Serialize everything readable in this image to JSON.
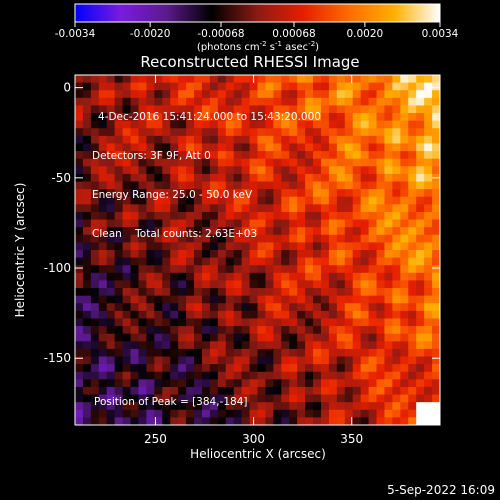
{
  "chart_data": {
    "type": "heatmap",
    "title": "Reconstructed RHESSI Image",
    "xlabel": "Heliocentric X (arcsec)",
    "ylabel": "Heliocentric Y (arcsec)",
    "xlim": [
      209,
      395
    ],
    "ylim": [
      -187,
      7
    ],
    "x_ticks": [
      250,
      300,
      350
    ],
    "y_ticks": [
      0,
      -50,
      -100,
      -150
    ],
    "colorbar": {
      "min": -0.0034,
      "max": 0.0034,
      "ticks": [
        "-0.0034",
        "-0.0020",
        "-0.00068",
        "0.00068",
        "0.0020",
        "0.0034"
      ],
      "tick_values": [
        -0.0034,
        -0.002,
        -0.00068,
        0.00068,
        0.002,
        0.0034
      ],
      "units_parts": [
        "(photons cm",
        "-2",
        " s",
        "-1",
        " asec",
        "-2",
        ")"
      ],
      "colors": [
        "#0000ff",
        "#7a1be0",
        "#5c1a8c",
        "#000000",
        "#8c1a14",
        "#e61e00",
        "#ff6a00",
        "#ffb000",
        "#ffffff"
      ]
    },
    "annotations": [
      "4-Dec-2016 15:41:24.000 to 15:43:20.000",
      "Detectors: 3F 9F, Att 0",
      "Energy Range: 25.0 - 50.0 keV",
      "Clean    Total counts: 2.63E+03"
    ],
    "peak_label": "Position of Peak = [384,-184]",
    "peak": [
      384,
      -184
    ],
    "grid": false
  },
  "footer_date": "5-Sep-2022 16:09"
}
